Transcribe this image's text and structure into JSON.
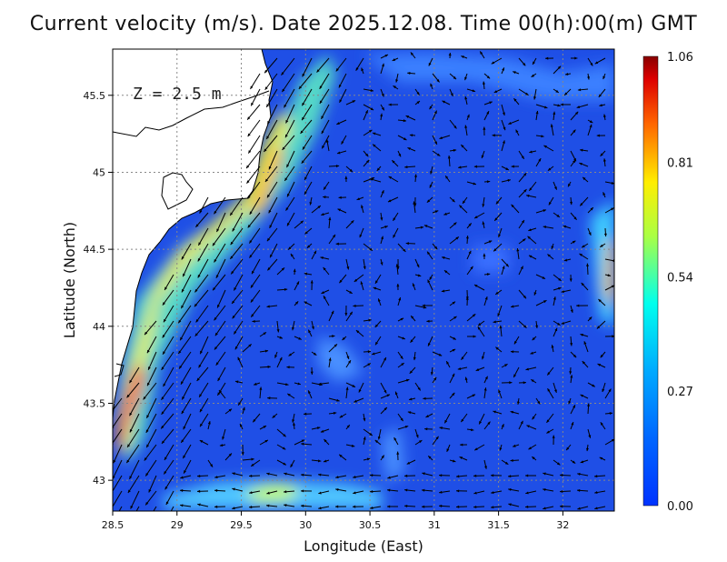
{
  "title": "Current velocity (m/s). Date 2025.12.08. Time 00(h):00(m) GMT",
  "depth_label": "Z = 2.5 m",
  "xlabel": "Longitude (East)",
  "ylabel": "Latitude (North)",
  "xlim": [
    28.5,
    32.4
  ],
  "ylim": [
    42.8,
    45.8
  ],
  "x_ticks": [
    "28.5",
    "29",
    "29.5",
    "30",
    "30.5",
    "31",
    "31.5",
    "32"
  ],
  "y_ticks": [
    "43",
    "43.5",
    "44",
    "44.5",
    "45",
    "45.5"
  ],
  "colorbar": {
    "ticks": [
      "0.00",
      "0.27",
      "0.54",
      "0.81",
      "1.06"
    ],
    "min": 0.0,
    "max": 1.06,
    "colors": [
      "#0033ff",
      "#0088ff",
      "#00ffff",
      "#ffff00",
      "#ff8800",
      "#ff0000",
      "#800000"
    ]
  },
  "map_colors": {
    "land": "#ffffff",
    "coast": "#000000",
    "grid": "#888888"
  }
}
